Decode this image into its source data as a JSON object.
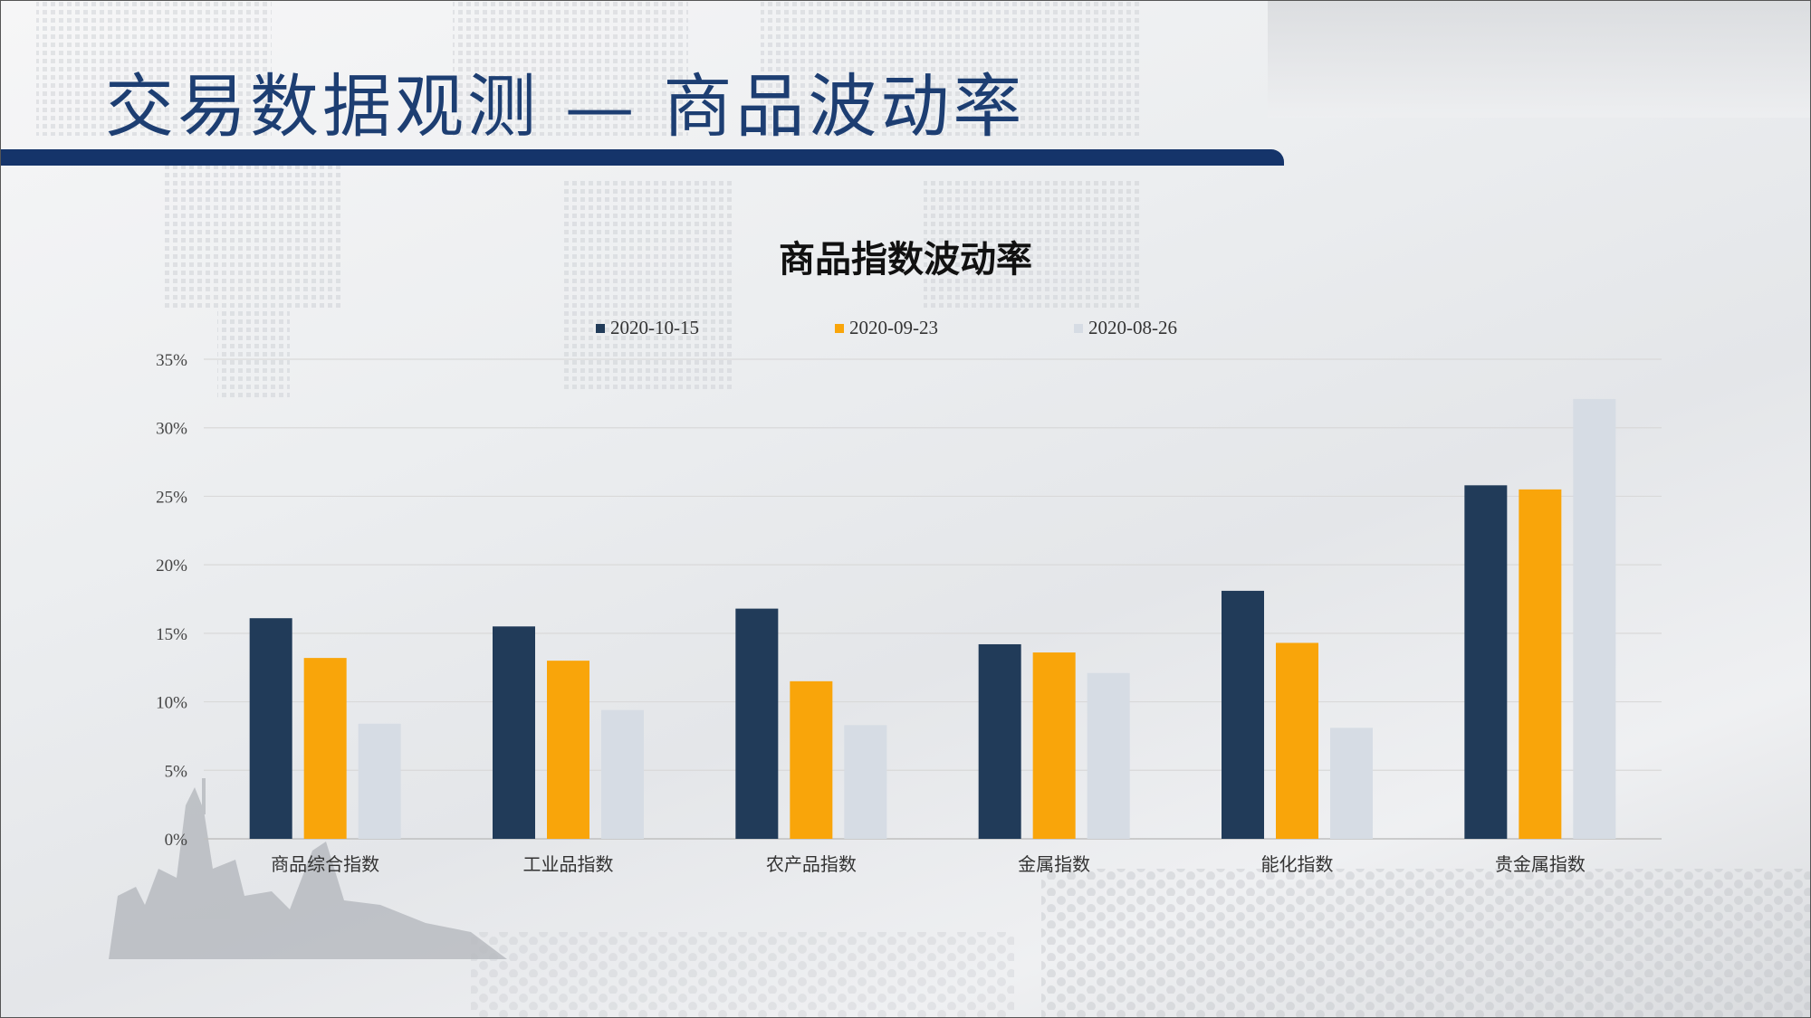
{
  "slide": {
    "title": "交易数据观测 — 商品波动率"
  },
  "colors": {
    "title_bar": "#15346a",
    "title_text": "#1d3e72"
  },
  "chart_data": {
    "type": "bar",
    "title": "商品指数波动率",
    "xlabel": "",
    "ylabel": "",
    "ylim": [
      0,
      0.35
    ],
    "y_ticks": [
      "0%",
      "5%",
      "10%",
      "15%",
      "20%",
      "25%",
      "30%",
      "35%"
    ],
    "grid": true,
    "legend_position": "top",
    "categories": [
      "商品综合指数",
      "工业品指数",
      "农产品指数",
      "金属指数",
      "能化指数",
      "贵金属指数"
    ],
    "series": [
      {
        "name": "2020-10-15",
        "color": "#213b59",
        "values": [
          0.161,
          0.155,
          0.168,
          0.142,
          0.181,
          0.258
        ]
      },
      {
        "name": "2020-09-23",
        "color": "#f9a50a",
        "values": [
          0.132,
          0.13,
          0.115,
          0.136,
          0.143,
          0.255
        ]
      },
      {
        "name": "2020-08-26",
        "color": "#d6dce4",
        "values": [
          0.084,
          0.094,
          0.083,
          0.121,
          0.081,
          0.321
        ]
      }
    ]
  }
}
